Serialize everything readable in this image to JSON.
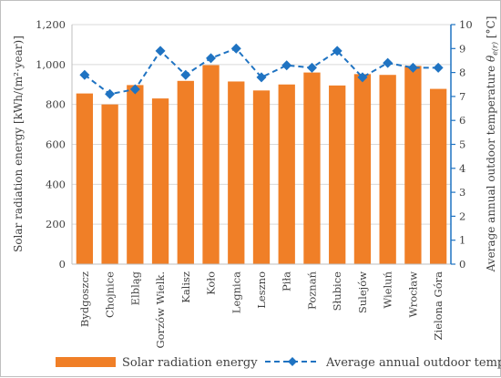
{
  "chart_data": {
    "type": "bar",
    "title": "",
    "categories": [
      "Bydgoszcz",
      "Chojnice",
      "Elbląg",
      "Gorzów Wielk.",
      "Kalisz",
      "Koło",
      "Legnica",
      "Leszno",
      "Piła",
      "Poznań",
      "Słubice",
      "Sulejów",
      "Wieluń",
      "Wrocław",
      "Zielona Góra"
    ],
    "series": [
      {
        "name": "Solar radiation energy",
        "type": "bar",
        "axis": "left",
        "color": "#f07f27",
        "values": [
          855,
          800,
          897,
          830,
          918,
          997,
          915,
          870,
          900,
          960,
          895,
          952,
          948,
          993,
          878
        ]
      },
      {
        "name": "Average annual outdoor temperature",
        "type": "line",
        "axis": "right",
        "color": "#1f73c2",
        "line_style": "dashed",
        "marker": "diamond",
        "values": [
          7.9,
          7.1,
          7.3,
          8.9,
          7.9,
          8.6,
          9.0,
          7.8,
          8.3,
          8.2,
          8.9,
          7.8,
          8.4,
          8.2,
          8.2
        ]
      }
    ],
    "ylabel": "Solar radiation energy [kWh/(m²·year)]",
    "y2label_main": "Average annual outdoor temperature ",
    "y2label_symbol": "θ",
    "y2label_sub": "e(r)",
    "y2label_unit": " [°C]",
    "ylim": [
      0,
      1200
    ],
    "yticks": [
      0,
      200,
      400,
      600,
      800,
      1000,
      1200
    ],
    "ytick_labels": [
      "0",
      "200",
      "400",
      "600",
      "800",
      "1,000",
      "1,200"
    ],
    "y2lim": [
      0,
      10
    ],
    "y2ticks": [
      0,
      1,
      2,
      3,
      4,
      5,
      6,
      7,
      8,
      9,
      10
    ],
    "grid": true,
    "legend_position": "bottom"
  }
}
